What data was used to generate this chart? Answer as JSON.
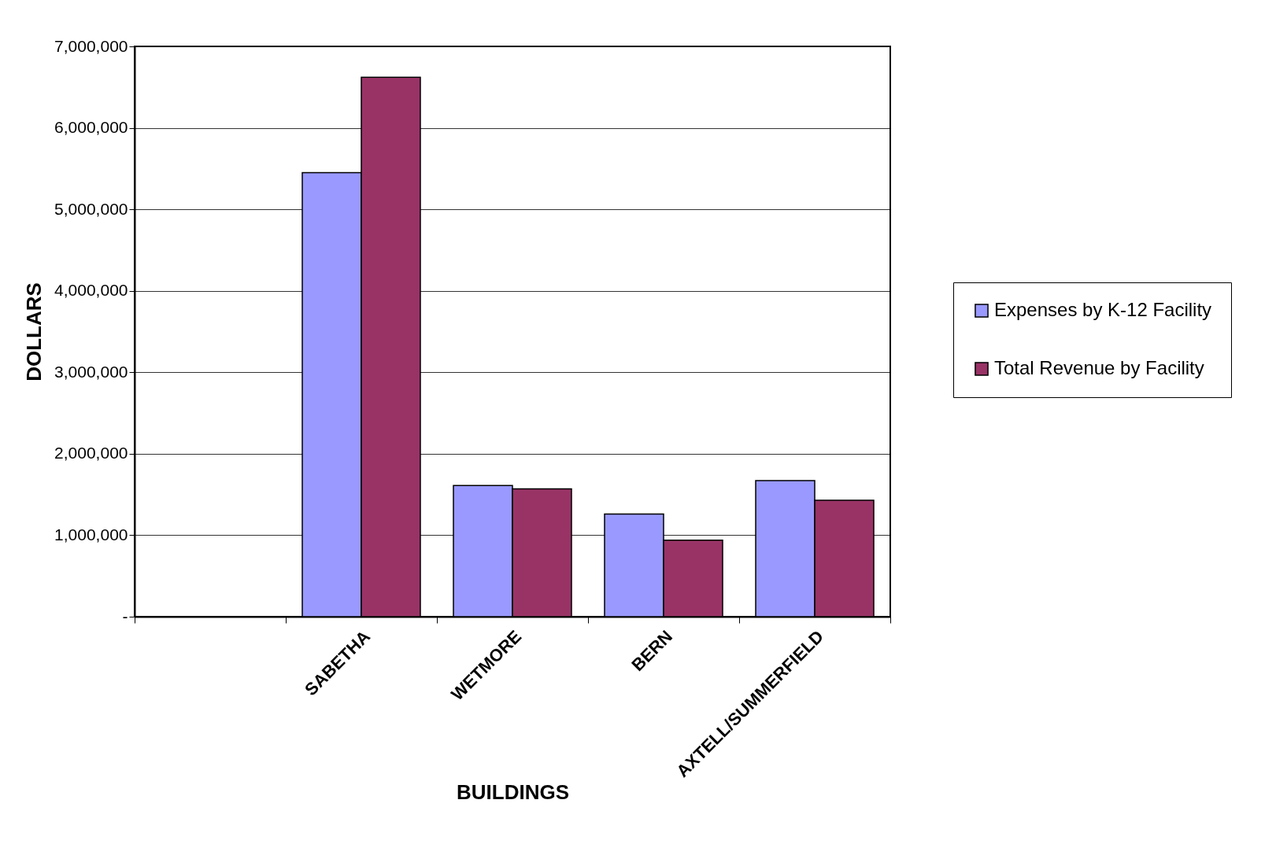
{
  "chart_data": {
    "type": "bar",
    "xlabel": "BUILDINGS",
    "ylabel": "DOLLARS",
    "categories": [
      null,
      "SABETHA",
      "WETMORE",
      "BERN",
      "AXTELL/SUMMERFIELD"
    ],
    "series": [
      {
        "name": "Expenses by K-12 Facility",
        "color": "#9999ff",
        "values": [
          null,
          5450000,
          1610000,
          1260000,
          1670000
        ]
      },
      {
        "name": "Total Revenue by Facility",
        "color": "#993366",
        "values": [
          null,
          6620000,
          1570000,
          940000,
          1430000
        ]
      }
    ],
    "ylim": [
      0,
      7000000
    ],
    "yticks": [
      {
        "value": 0,
        "label": "-"
      },
      {
        "value": 1000000,
        "label": "1,000,000"
      },
      {
        "value": 2000000,
        "label": "2,000,000"
      },
      {
        "value": 3000000,
        "label": "3,000,000"
      },
      {
        "value": 4000000,
        "label": "4,000,000"
      },
      {
        "value": 5000000,
        "label": "5,000,000"
      },
      {
        "value": 6000000,
        "label": "6,000,000"
      },
      {
        "value": 7000000,
        "label": "7,000,000"
      }
    ],
    "grid": "y",
    "legend": "right"
  }
}
